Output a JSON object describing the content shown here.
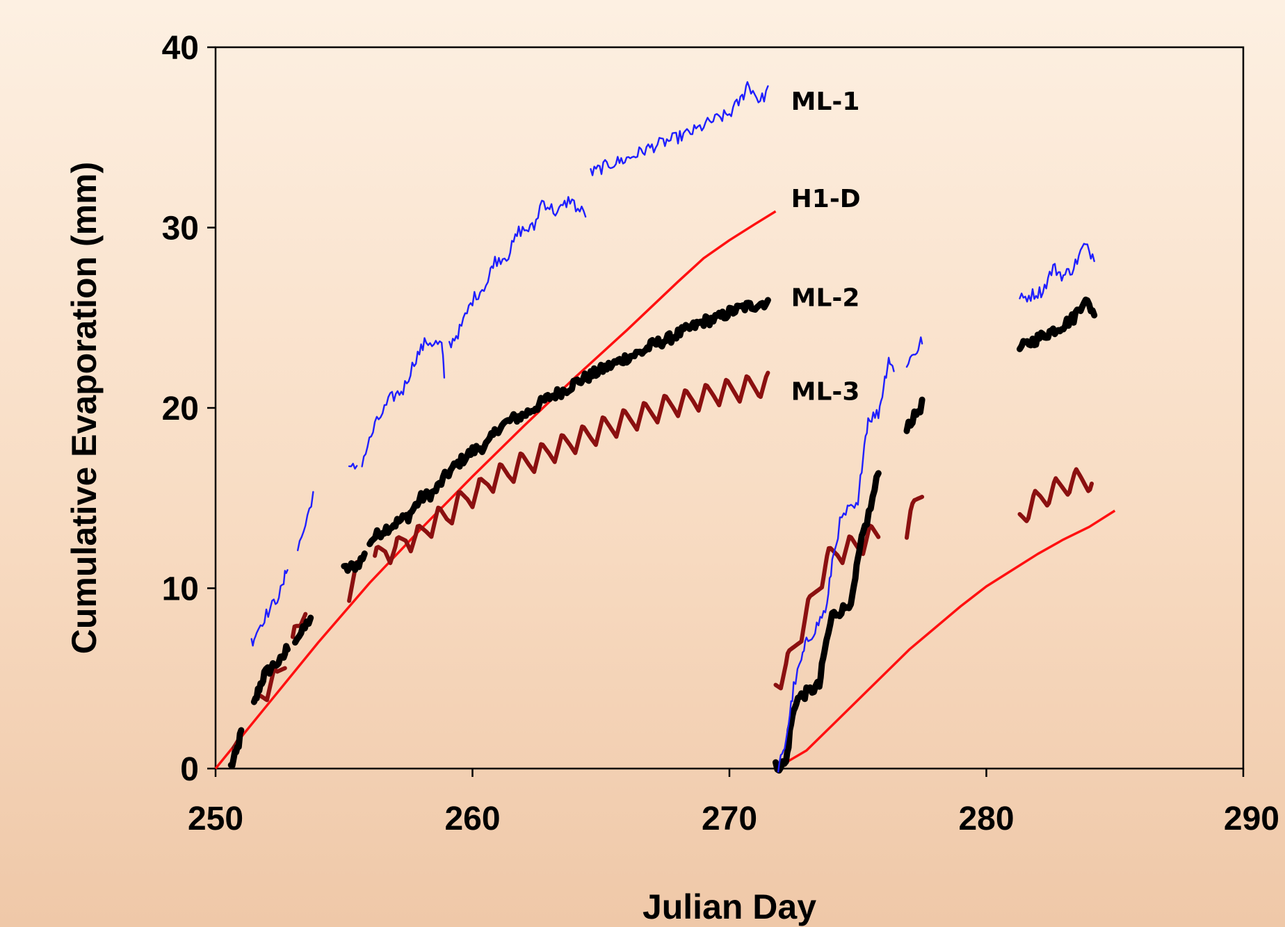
{
  "chart_data": {
    "type": "line",
    "title": "",
    "xlabel": "Julian Day",
    "ylabel": "Cumulative Evaporation (mm)",
    "xlim": [
      250,
      290
    ],
    "ylim": [
      0,
      40
    ],
    "xticks": [
      "250",
      "260",
      "270",
      "280",
      "290"
    ],
    "yticks": [
      "0",
      "10",
      "20",
      "30",
      "40"
    ],
    "grid": false,
    "series": [
      {
        "name": "ML-1",
        "color": "#1f1fff",
        "style": "noisy",
        "segments": [
          [
            [
              251.4,
              7.0
            ],
            [
              251.6,
              7.6
            ],
            [
              251.9,
              8.4
            ],
            [
              252.2,
              9.0
            ],
            [
              252.6,
              10.0
            ],
            [
              252.8,
              11.3
            ]
          ],
          [
            [
              253.2,
              12.2
            ],
            [
              253.5,
              13.5
            ],
            [
              253.8,
              15.3
            ]
          ],
          [
            [
              255.2,
              16.5
            ],
            [
              255.5,
              16.8
            ]
          ],
          [
            [
              255.7,
              17.0
            ],
            [
              256.2,
              19.0
            ],
            [
              256.8,
              20.5
            ],
            [
              257.3,
              21.0
            ],
            [
              257.8,
              22.8
            ],
            [
              258.2,
              23.7
            ],
            [
              258.8,
              23.5
            ],
            [
              258.9,
              21.8
            ]
          ],
          [
            [
              259.1,
              23.5
            ],
            [
              259.5,
              24.3
            ],
            [
              260.0,
              26.0
            ],
            [
              260.6,
              27.0
            ],
            [
              260.8,
              28.1
            ],
            [
              261.4,
              28.5
            ],
            [
              261.8,
              29.8
            ],
            [
              262.4,
              30.0
            ],
            [
              262.7,
              31.5
            ],
            [
              263.3,
              30.8
            ],
            [
              263.8,
              31.6
            ],
            [
              264.1,
              31.0
            ],
            [
              264.4,
              30.8
            ]
          ],
          [
            [
              264.6,
              33.0
            ],
            [
              265.3,
              33.5
            ],
            [
              266.0,
              33.8
            ],
            [
              266.7,
              34.3
            ],
            [
              267.2,
              34.6
            ],
            [
              268.0,
              35.0
            ],
            [
              268.7,
              35.4
            ],
            [
              269.3,
              35.9
            ],
            [
              270.0,
              36.3
            ],
            [
              270.5,
              37.2
            ],
            [
              270.7,
              38.0
            ],
            [
              271.2,
              37.0
            ],
            [
              271.5,
              37.6
            ]
          ],
          [
            [
              271.9,
              0.1
            ],
            [
              272.1,
              0.8
            ],
            [
              272.3,
              2.5
            ],
            [
              272.5,
              4.5
            ],
            [
              272.8,
              6.0
            ],
            [
              273.0,
              7.0
            ],
            [
              273.4,
              7.9
            ],
            [
              273.8,
              9.0
            ],
            [
              274.0,
              11.5
            ],
            [
              274.3,
              13.6
            ],
            [
              274.6,
              14.3
            ],
            [
              275.0,
              14.5
            ],
            [
              275.2,
              17.5
            ],
            [
              275.4,
              19.4
            ],
            [
              275.8,
              19.7
            ],
            [
              276.0,
              21.2
            ],
            [
              276.2,
              22.8
            ],
            [
              276.4,
              22.0
            ]
          ],
          [
            [
              276.9,
              22.5
            ],
            [
              277.3,
              23.2
            ],
            [
              277.5,
              23.8
            ]
          ],
          [
            [
              281.3,
              26.0
            ],
            [
              281.8,
              26.3
            ],
            [
              282.2,
              26.5
            ],
            [
              282.6,
              27.8
            ],
            [
              283.0,
              27.3
            ],
            [
              283.4,
              27.8
            ],
            [
              283.8,
              29.0
            ],
            [
              284.2,
              28.4
            ]
          ]
        ]
      },
      {
        "name": "H1-D",
        "color": "#ff1010",
        "style": "smooth",
        "segments": [
          [
            [
              250.0,
              0.0
            ],
            [
              252.0,
              3.5
            ],
            [
              254.0,
              7.0
            ],
            [
              256.0,
              10.3
            ],
            [
              258.0,
              13.3
            ],
            [
              260.0,
              16.2
            ],
            [
              262.0,
              19.0
            ],
            [
              264.0,
              21.7
            ],
            [
              266.0,
              24.3
            ],
            [
              268.0,
              27.0
            ],
            [
              269.0,
              28.3
            ],
            [
              270.0,
              29.3
            ],
            [
              271.0,
              30.2
            ],
            [
              271.8,
              30.9
            ]
          ],
          [
            [
              271.8,
              0.0
            ],
            [
              273.0,
              1.0
            ],
            [
              274.0,
              2.4
            ],
            [
              275.0,
              3.8
            ],
            [
              276.0,
              5.2
            ],
            [
              277.0,
              6.6
            ],
            [
              278.0,
              7.8
            ],
            [
              279.0,
              9.0
            ],
            [
              280.0,
              10.1
            ],
            [
              281.0,
              11.0
            ],
            [
              282.0,
              11.9
            ],
            [
              283.0,
              12.7
            ],
            [
              284.0,
              13.4
            ],
            [
              285.0,
              14.3
            ]
          ]
        ]
      },
      {
        "name": "ML-2",
        "color": "#000000",
        "style": "thick",
        "segments": [
          [
            [
              250.6,
              0.1
            ],
            [
              250.8,
              0.8
            ],
            [
              251.0,
              2.0
            ]
          ],
          [
            [
              251.5,
              3.5
            ],
            [
              251.7,
              4.5
            ],
            [
              251.9,
              5.2
            ],
            [
              252.3,
              5.8
            ],
            [
              252.6,
              6.0
            ],
            [
              252.8,
              6.8
            ]
          ],
          [
            [
              253.1,
              7.2
            ],
            [
              253.4,
              7.6
            ],
            [
              253.7,
              8.4
            ]
          ],
          [
            [
              255.0,
              11.0
            ],
            [
              255.5,
              11.3
            ],
            [
              255.8,
              11.8
            ]
          ],
          [
            [
              256.0,
              12.6
            ],
            [
              256.5,
              13.2
            ],
            [
              257.0,
              13.6
            ],
            [
              257.5,
              14.0
            ],
            [
              258.0,
              15.0
            ],
            [
              258.5,
              15.3
            ],
            [
              259.0,
              16.3
            ],
            [
              259.5,
              17.0
            ],
            [
              260.0,
              17.6
            ],
            [
              260.6,
              18.0
            ],
            [
              261.0,
              18.9
            ],
            [
              261.6,
              19.4
            ],
            [
              262.0,
              19.6
            ],
            [
              262.6,
              20.2
            ],
            [
              263.0,
              20.6
            ],
            [
              263.6,
              21.0
            ],
            [
              264.0,
              21.4
            ],
            [
              264.6,
              21.8
            ],
            [
              265.0,
              22.1
            ],
            [
              265.6,
              22.5
            ],
            [
              266.0,
              22.8
            ],
            [
              266.6,
              23.1
            ],
            [
              267.0,
              23.5
            ],
            [
              267.6,
              23.8
            ],
            [
              268.0,
              24.1
            ],
            [
              268.6,
              24.5
            ],
            [
              269.0,
              24.8
            ],
            [
              269.6,
              25.0
            ],
            [
              270.0,
              25.3
            ],
            [
              270.6,
              25.6
            ],
            [
              271.0,
              25.7
            ],
            [
              271.5,
              25.9
            ]
          ],
          [
            [
              271.8,
              0.1
            ],
            [
              272.2,
              0.3
            ],
            [
              272.4,
              2.5
            ],
            [
              272.6,
              3.8
            ],
            [
              273.0,
              4.2
            ],
            [
              273.5,
              4.6
            ],
            [
              273.7,
              6.5
            ],
            [
              274.0,
              8.5
            ],
            [
              274.5,
              8.9
            ],
            [
              274.8,
              9.5
            ],
            [
              275.0,
              11.5
            ],
            [
              275.2,
              13.0
            ],
            [
              275.5,
              14.5
            ],
            [
              275.8,
              16.4
            ]
          ],
          [
            [
              276.9,
              19.0
            ],
            [
              277.2,
              19.5
            ],
            [
              277.5,
              20.2
            ]
          ],
          [
            [
              281.3,
              23.3
            ],
            [
              281.8,
              23.7
            ],
            [
              282.2,
              24.0
            ],
            [
              282.6,
              24.3
            ],
            [
              283.0,
              24.6
            ],
            [
              283.4,
              25.0
            ],
            [
              283.8,
              26.0
            ],
            [
              284.2,
              25.3
            ]
          ]
        ]
      },
      {
        "name": "ML-3",
        "color": "#8b1010",
        "style": "saw",
        "segments": [
          [
            [
              250.7,
              0.5
            ],
            [
              250.9,
              1.5
            ]
          ],
          [
            [
              251.6,
              3.8
            ],
            [
              252.0,
              4.5
            ],
            [
              252.4,
              5.0
            ],
            [
              252.7,
              6.0
            ]
          ],
          [
            [
              253.0,
              7.0
            ],
            [
              253.3,
              7.8
            ],
            [
              253.5,
              9.0
            ]
          ],
          [
            [
              255.2,
              10.0
            ],
            [
              255.5,
              10.8
            ]
          ],
          [
            [
              256.2,
              11.5
            ],
            [
              256.6,
              12.2
            ],
            [
              257.0,
              12.0
            ],
            [
              257.4,
              12.8
            ],
            [
              257.8,
              12.7
            ],
            [
              258.2,
              13.3
            ],
            [
              258.6,
              13.8
            ],
            [
              259.0,
              14.0
            ],
            [
              259.4,
              14.6
            ],
            [
              259.8,
              15.1
            ],
            [
              260.2,
              15.3
            ],
            [
              260.6,
              15.9
            ],
            [
              261.0,
              16.2
            ],
            [
              261.4,
              16.4
            ],
            [
              261.8,
              16.8
            ],
            [
              262.2,
              17.0
            ],
            [
              262.6,
              17.3
            ],
            [
              263.0,
              17.6
            ],
            [
              263.4,
              17.8
            ],
            [
              263.8,
              18.1
            ],
            [
              264.2,
              18.3
            ],
            [
              264.6,
              18.5
            ],
            [
              265.0,
              18.8
            ],
            [
              265.4,
              19.0
            ],
            [
              265.8,
              19.2
            ],
            [
              266.2,
              19.4
            ],
            [
              266.6,
              19.6
            ],
            [
              267.0,
              19.8
            ],
            [
              267.4,
              20.0
            ],
            [
              267.8,
              20.2
            ],
            [
              268.2,
              20.3
            ],
            [
              268.6,
              20.5
            ],
            [
              269.0,
              20.6
            ],
            [
              269.4,
              20.8
            ],
            [
              269.8,
              20.9
            ],
            [
              270.2,
              21.0
            ],
            [
              270.6,
              21.1
            ],
            [
              271.0,
              21.2
            ],
            [
              271.5,
              21.3
            ]
          ],
          [
            [
              271.8,
              4.8
            ],
            [
              272.2,
              5.5
            ],
            [
              272.6,
              7.0
            ],
            [
              273.0,
              8.5
            ],
            [
              273.4,
              10.0
            ],
            [
              273.8,
              11.5
            ],
            [
              274.2,
              12.0
            ],
            [
              274.6,
              12.2
            ],
            [
              275.0,
              12.4
            ],
            [
              275.4,
              12.8
            ],
            [
              275.8,
              13.0
            ]
          ],
          [
            [
              276.9,
              13.0
            ],
            [
              277.2,
              14.5
            ],
            [
              277.5,
              15.5
            ]
          ],
          [
            [
              281.3,
              14.0
            ],
            [
              281.7,
              14.5
            ],
            [
              282.1,
              15.0
            ],
            [
              282.5,
              15.3
            ],
            [
              282.9,
              15.6
            ],
            [
              283.3,
              15.9
            ],
            [
              283.7,
              16.0
            ],
            [
              284.1,
              16.0
            ]
          ]
        ]
      }
    ],
    "annotations": [
      {
        "text": "ML-1",
        "x": 272.4,
        "y": 37.0
      },
      {
        "text": "H1-D",
        "x": 272.4,
        "y": 31.6
      },
      {
        "text": "ML-2",
        "x": 272.4,
        "y": 26.1
      },
      {
        "text": "ML-3",
        "x": 272.4,
        "y": 20.9
      }
    ]
  }
}
